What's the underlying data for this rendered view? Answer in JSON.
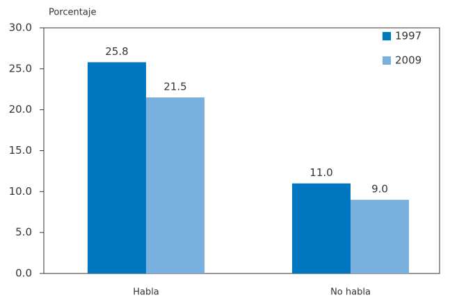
{
  "chart_data": {
    "type": "bar",
    "ylabel": "Porcentaje",
    "categories": [
      "Habla",
      "No habla"
    ],
    "series": [
      {
        "name": "1997",
        "color": "#0077c0",
        "values": [
          25.8,
          11.0
        ],
        "value_labels": [
          "25.8",
          "11.0"
        ]
      },
      {
        "name": "2009",
        "color": "#7ab0de",
        "values": [
          21.5,
          9.0
        ],
        "value_labels": [
          "21.5",
          "9.0"
        ]
      }
    ],
    "ylim": [
      0,
      30
    ],
    "yticks": [
      {
        "value": 0,
        "label": "0.0"
      },
      {
        "value": 5,
        "label": "5.0"
      },
      {
        "value": 10,
        "label": "10.0"
      },
      {
        "value": 15,
        "label": "15.0"
      },
      {
        "value": 20,
        "label": "20.0"
      },
      {
        "value": 25,
        "label": "25.0"
      },
      {
        "value": 30,
        "label": "30.0"
      }
    ],
    "grid": false,
    "legend": "upper right"
  }
}
